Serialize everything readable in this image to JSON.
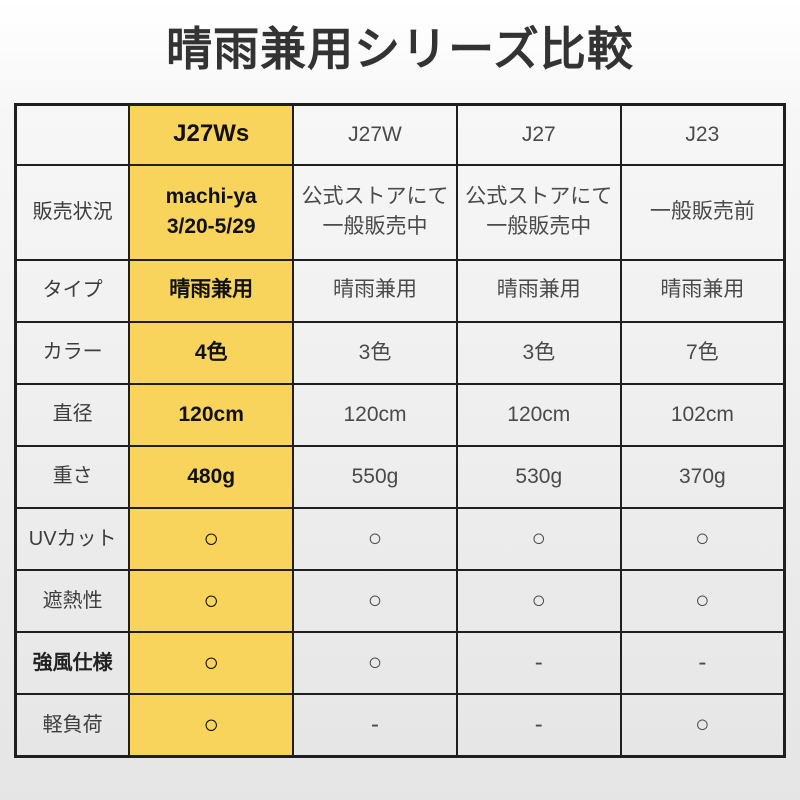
{
  "page": {
    "title": "晴雨兼用シリーズ比較"
  },
  "colors": {
    "highlight_yellow": "#F8D45C",
    "border": "#1F1F1F",
    "title_text": "#333333"
  },
  "chart_data": {
    "type": "table",
    "title": "晴雨兼用シリーズ比較",
    "columns": [
      "",
      "J27Ws",
      "J27W",
      "J27",
      "J23"
    ],
    "highlighted_column": "J27Ws",
    "rows": [
      {
        "label": "販売状況",
        "bold_label": false,
        "cells": [
          "machi-ya\n3/20-5/29",
          "公式ストアにて\n一般販売中",
          "公式ストアにて\n一般販売中",
          "一般販売前"
        ]
      },
      {
        "label": "タイプ",
        "bold_label": false,
        "cells": [
          "晴雨兼用",
          "晴雨兼用",
          "晴雨兼用",
          "晴雨兼用"
        ]
      },
      {
        "label": "カラー",
        "bold_label": false,
        "cells": [
          "4色",
          "3色",
          "3色",
          "7色"
        ]
      },
      {
        "label": "直径",
        "bold_label": false,
        "cells": [
          "120cm",
          "120cm",
          "120cm",
          "102cm"
        ]
      },
      {
        "label": "重さ",
        "bold_label": false,
        "cells": [
          "480g",
          "550g",
          "530g",
          "370g"
        ]
      },
      {
        "label": "UVカット",
        "bold_label": false,
        "cells": [
          "○",
          "○",
          "○",
          "○"
        ]
      },
      {
        "label": "遮熱性",
        "bold_label": false,
        "cells": [
          "○",
          "○",
          "○",
          "○"
        ]
      },
      {
        "label": "強風仕様",
        "bold_label": true,
        "cells": [
          "○",
          "○",
          "-",
          "-"
        ]
      },
      {
        "label": "軽負荷",
        "bold_label": false,
        "cells": [
          "○",
          "-",
          "-",
          "○"
        ]
      }
    ]
  }
}
